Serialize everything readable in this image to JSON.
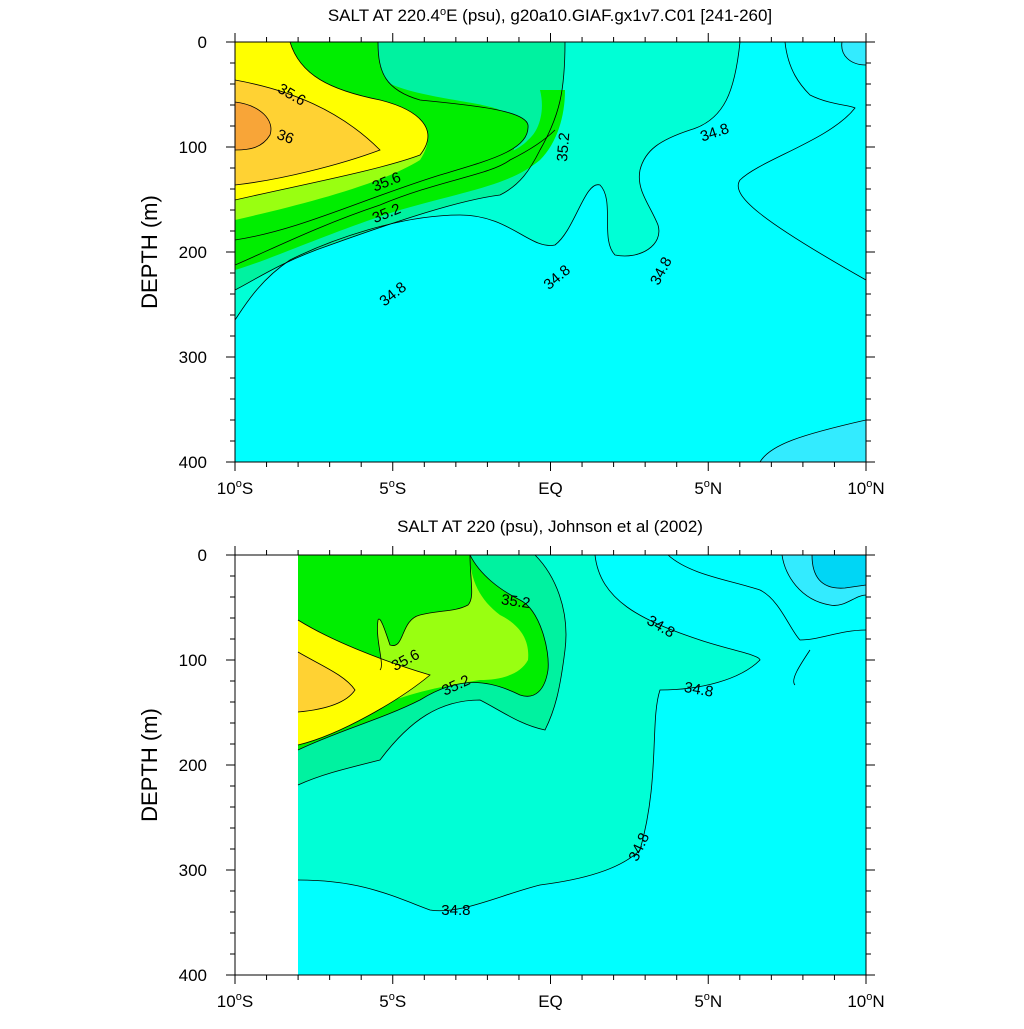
{
  "chart_data": [
    {
      "type": "contour",
      "title": "SALT AT 220.4°E (psu), g20a10.GIAF.gx1v7.C01 [241-260]",
      "title_parts": {
        "before": "SALT AT 220.4",
        "degree": "o",
        "after": "E (psu), g20a10.GIAF.gx1v7.C01 [241-260]"
      },
      "ylabel": "DEPTH (m)",
      "x_range": [
        -10,
        10
      ],
      "y_range": [
        0,
        400
      ],
      "y_reversed": true,
      "y_ticks": [
        "0",
        "100",
        "200",
        "300",
        "400"
      ],
      "x_ticks": [
        {
          "value": -10,
          "num": "10",
          "deg": "o",
          "hemi": "S"
        },
        {
          "value": -5,
          "num": "5",
          "deg": "o",
          "hemi": "S"
        },
        {
          "value": 0,
          "num": "EQ",
          "deg": "",
          "hemi": ""
        },
        {
          "value": 5,
          "num": "5",
          "deg": "o",
          "hemi": "N"
        },
        {
          "value": 10,
          "num": "10",
          "deg": "o",
          "hemi": "N"
        }
      ],
      "contour_levels": [
        34.4,
        34.6,
        34.8,
        35.0,
        35.2,
        35.4,
        35.6,
        35.8,
        36.0,
        36.2
      ],
      "contour_labels": [
        {
          "text": "35.6",
          "x": -8.2,
          "y": 50,
          "angle": 30
        },
        {
          "text": "36",
          "x": -8.4,
          "y": 90,
          "angle": 20
        },
        {
          "text": "35.6",
          "x": -5.2,
          "y": 133,
          "angle": -22
        },
        {
          "text": "35.2",
          "x": -5.2,
          "y": 163,
          "angle": -22
        },
        {
          "text": "34.8",
          "x": -5.0,
          "y": 240,
          "angle": -38
        },
        {
          "text": "35.2",
          "x": 0.4,
          "y": 100,
          "angle": -85
        },
        {
          "text": "34.8",
          "x": 5.2,
          "y": 86,
          "angle": -18
        },
        {
          "text": "34.8",
          "x": 0.2,
          "y": 224,
          "angle": -40
        },
        {
          "text": "34.8",
          "x": 3.5,
          "y": 218,
          "angle": -62
        }
      ]
    },
    {
      "type": "contour",
      "title": "SALT AT 220 (psu), Johnson et al (2002)",
      "ylabel": "DEPTH (m)",
      "x_range": [
        -10,
        10
      ],
      "y_range": [
        0,
        400
      ],
      "y_reversed": true,
      "data_x_start": -8,
      "y_ticks": [
        "0",
        "100",
        "200",
        "300",
        "400"
      ],
      "x_ticks": [
        {
          "value": -10,
          "num": "10",
          "deg": "o",
          "hemi": "S"
        },
        {
          "value": -5,
          "num": "5",
          "deg": "o",
          "hemi": "S"
        },
        {
          "value": 0,
          "num": "EQ",
          "deg": "",
          "hemi": ""
        },
        {
          "value": 5,
          "num": "5",
          "deg": "o",
          "hemi": "N"
        },
        {
          "value": 10,
          "num": "10",
          "deg": "o",
          "hemi": "N"
        }
      ],
      "contour_levels": [
        34.4,
        34.6,
        34.8,
        35.0,
        35.2,
        35.4,
        35.6,
        35.8,
        36.0
      ],
      "contour_labels": [
        {
          "text": "35.2",
          "x": -1.1,
          "y": 44,
          "angle": 8
        },
        {
          "text": "35.6",
          "x": -4.6,
          "y": 100,
          "angle": -28
        },
        {
          "text": "35.2",
          "x": -3.0,
          "y": 124,
          "angle": -25
        },
        {
          "text": "34.8",
          "x": 3.5,
          "y": 68,
          "angle": 30
        },
        {
          "text": "34.8",
          "x": 4.7,
          "y": 128,
          "angle": 10
        },
        {
          "text": "34.8",
          "x": 2.8,
          "y": 278,
          "angle": -65
        },
        {
          "text": "34.8",
          "x": -3.0,
          "y": 338,
          "angle": 0
        }
      ]
    }
  ],
  "colors": {
    "c34_4": "#00d6f5",
    "c34_6": "#33ebff",
    "c34_8": "#00ffff",
    "c35_0": "#00ffd6",
    "c35_2": "#00f2a0",
    "c35_4": "#00ee00",
    "c35_6": "#99ff11",
    "c35_8": "#ffff00",
    "c36_0": "#ffd233",
    "c36_2": "#f8a538"
  }
}
